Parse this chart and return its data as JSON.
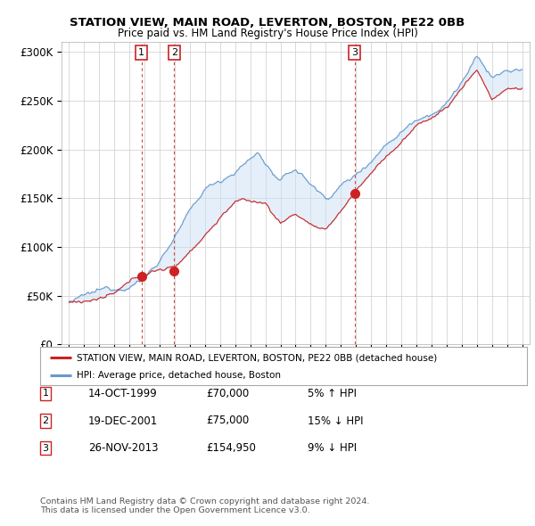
{
  "title": "STATION VIEW, MAIN ROAD, LEVERTON, BOSTON, PE22 0BB",
  "subtitle": "Price paid vs. HM Land Registry's House Price Index (HPI)",
  "ylabel_ticks": [
    "£0",
    "£50K",
    "£100K",
    "£150K",
    "£200K",
    "£250K",
    "£300K"
  ],
  "ytick_values": [
    0,
    50000,
    100000,
    150000,
    200000,
    250000,
    300000
  ],
  "ylim": [
    0,
    310000
  ],
  "xlim_start": 1994.5,
  "xlim_end": 2025.5,
  "sale_dates": [
    1999.79,
    2001.96,
    2013.9
  ],
  "sale_prices": [
    70000,
    75000,
    154950
  ],
  "sale_labels": [
    "1",
    "2",
    "3"
  ],
  "legend_line1": "STATION VIEW, MAIN ROAD, LEVERTON, BOSTON, PE22 0BB (detached house)",
  "legend_line2": "HPI: Average price, detached house, Boston",
  "table_rows": [
    [
      "1",
      "14-OCT-1999",
      "£70,000",
      "5% ↑ HPI"
    ],
    [
      "2",
      "19-DEC-2001",
      "£75,000",
      "15% ↓ HPI"
    ],
    [
      "3",
      "26-NOV-2013",
      "£154,950",
      "9% ↓ HPI"
    ]
  ],
  "footnote": "Contains HM Land Registry data © Crown copyright and database right 2024.\nThis data is licensed under the Open Government Licence v3.0.",
  "hpi_color": "#6699cc",
  "price_color": "#cc2222",
  "sale_marker_color": "#cc2222",
  "vline_color": "#cc2222",
  "shade_color": "#cce0f5",
  "grid_color": "#cccccc",
  "bg_color": "#ffffff"
}
